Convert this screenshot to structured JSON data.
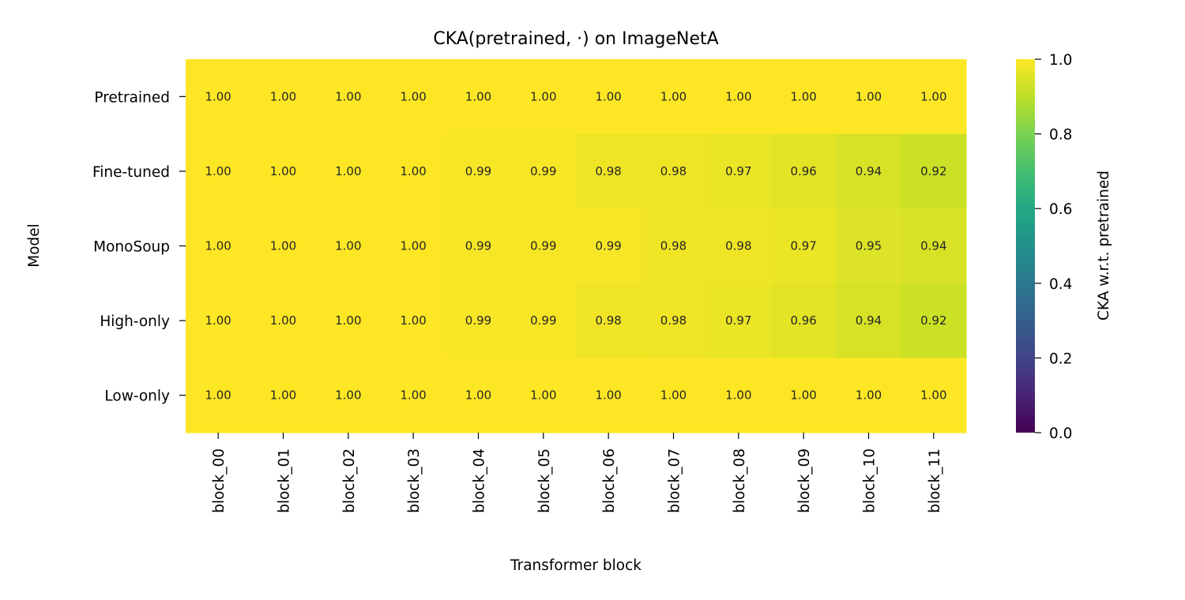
{
  "chart_data": {
    "type": "heatmap",
    "title": "CKA(pretrained, ·) on ImageNetA",
    "xlabel": "Transformer block",
    "ylabel": "Model",
    "colorbar_label": "CKA w.r.t. pretrained",
    "colormap": "viridis",
    "vmin": 0.0,
    "vmax": 1.0,
    "colorbar_ticks": [
      "0.0",
      "0.2",
      "0.4",
      "0.6",
      "0.8",
      "1.0"
    ],
    "x_categories": [
      "block_00",
      "block_01",
      "block_02",
      "block_03",
      "block_04",
      "block_05",
      "block_06",
      "block_07",
      "block_08",
      "block_09",
      "block_10",
      "block_11"
    ],
    "y_categories": [
      "Pretrained",
      "Fine-tuned",
      "MonoSoup",
      "High-only",
      "Low-only"
    ],
    "values": [
      [
        1.0,
        1.0,
        1.0,
        1.0,
        1.0,
        1.0,
        1.0,
        1.0,
        1.0,
        1.0,
        1.0,
        1.0
      ],
      [
        1.0,
        1.0,
        1.0,
        1.0,
        0.99,
        0.99,
        0.98,
        0.98,
        0.97,
        0.96,
        0.94,
        0.92
      ],
      [
        1.0,
        1.0,
        1.0,
        1.0,
        0.99,
        0.99,
        0.99,
        0.98,
        0.98,
        0.97,
        0.95,
        0.94
      ],
      [
        1.0,
        1.0,
        1.0,
        1.0,
        0.99,
        0.99,
        0.98,
        0.98,
        0.97,
        0.96,
        0.94,
        0.92
      ],
      [
        1.0,
        1.0,
        1.0,
        1.0,
        1.0,
        1.0,
        1.0,
        1.0,
        1.0,
        1.0,
        1.0,
        1.0
      ]
    ],
    "cell_labels": [
      [
        "1.00",
        "1.00",
        "1.00",
        "1.00",
        "1.00",
        "1.00",
        "1.00",
        "1.00",
        "1.00",
        "1.00",
        "1.00",
        "1.00"
      ],
      [
        "1.00",
        "1.00",
        "1.00",
        "1.00",
        "0.99",
        "0.99",
        "0.98",
        "0.98",
        "0.97",
        "0.96",
        "0.94",
        "0.92"
      ],
      [
        "1.00",
        "1.00",
        "1.00",
        "1.00",
        "0.99",
        "0.99",
        "0.99",
        "0.98",
        "0.98",
        "0.97",
        "0.95",
        "0.94"
      ],
      [
        "1.00",
        "1.00",
        "1.00",
        "1.00",
        "0.99",
        "0.99",
        "0.98",
        "0.98",
        "0.97",
        "0.96",
        "0.94",
        "0.92"
      ],
      [
        "1.00",
        "1.00",
        "1.00",
        "1.00",
        "1.00",
        "1.00",
        "1.00",
        "1.00",
        "1.00",
        "1.00",
        "1.00",
        "1.00"
      ]
    ]
  }
}
